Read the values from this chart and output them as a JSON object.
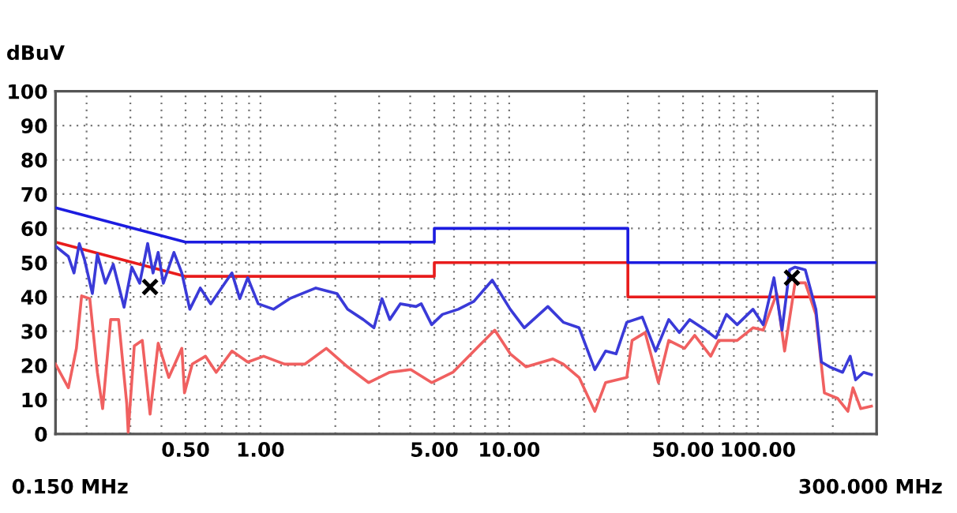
{
  "chart_data": {
    "type": "line",
    "ylabel": "dBuV",
    "log": "x",
    "grid": true,
    "legend": false,
    "line_style": "solid",
    "xlim": [
      0.15,
      300
    ],
    "ylim": [
      0,
      100
    ],
    "annotations": [
      "0.150 MHz",
      "300.000 MHz"
    ],
    "xticks": [
      {
        "value": 0.2,
        "label": null
      },
      {
        "value": 0.3,
        "label": null
      },
      {
        "value": 0.4,
        "label": null
      },
      {
        "value": 0.5,
        "label": "0.50"
      },
      {
        "value": 0.6,
        "label": null
      },
      {
        "value": 0.7,
        "label": null
      },
      {
        "value": 0.8,
        "label": null
      },
      {
        "value": 0.9,
        "label": null
      },
      {
        "value": 1,
        "label": "1.00"
      },
      {
        "value": 2,
        "label": null
      },
      {
        "value": 3,
        "label": null
      },
      {
        "value": 4,
        "label": null
      },
      {
        "value": 5,
        "label": "5.00"
      },
      {
        "value": 6,
        "label": null
      },
      {
        "value": 7,
        "label": null
      },
      {
        "value": 8,
        "label": null
      },
      {
        "value": 9,
        "label": null
      },
      {
        "value": 10,
        "label": "10.00"
      },
      {
        "value": 20,
        "label": null
      },
      {
        "value": 30,
        "label": null
      },
      {
        "value": 40,
        "label": null
      },
      {
        "value": 50,
        "label": "50.00"
      },
      {
        "value": 60,
        "label": null
      },
      {
        "value": 70,
        "label": null
      },
      {
        "value": 80,
        "label": null
      },
      {
        "value": 90,
        "label": null
      },
      {
        "value": 100,
        "label": "100.00"
      },
      {
        "value": 200,
        "label": null
      }
    ],
    "yticks": [
      0,
      10,
      20,
      30,
      40,
      50,
      60,
      70,
      80,
      90,
      100
    ],
    "series": [
      {
        "color": "#e81c1c",
        "marker": "none",
        "x": [
          0.15,
          0.5,
          5,
          5,
          30,
          30,
          300
        ],
        "values": [
          56,
          46,
          46,
          50,
          50,
          40,
          40
        ]
      },
      {
        "color": "#1c1ce0",
        "marker": "none",
        "x": [
          0.15,
          0.5,
          5,
          5,
          30,
          30,
          300
        ],
        "values": [
          66,
          56,
          56,
          60,
          60,
          50,
          50
        ]
      },
      {
        "color": "#f06060",
        "marker": "none",
        "x": [
          0.15,
          0.169,
          0.182,
          0.191,
          0.206,
          0.221,
          0.232,
          0.25,
          0.269,
          0.29,
          0.294,
          0.311,
          0.335,
          0.36,
          0.388,
          0.428,
          0.483,
          0.495,
          0.532,
          0.601,
          0.664,
          0.768,
          0.889,
          1.03,
          1.25,
          1.51,
          1.84,
          2.24,
          2.72,
          3.31,
          4.02,
          4.88,
          5.94,
          7.56,
          8.75,
          10.1,
          11.7,
          15.0,
          16.5,
          19.1,
          22.1,
          24.4,
          29.7,
          31.2,
          35.2,
          39.8,
          43.8,
          50.7,
          55.7,
          64.6,
          69.5,
          82.5,
          95.5,
          105,
          119,
          128,
          141,
          155,
          171,
          185,
          209,
          230,
          241,
          259,
          286
        ],
        "values": [
          20.4,
          13.5,
          25,
          40.3,
          39.5,
          18,
          7.4,
          33.4,
          33.4,
          8.9,
          0.5,
          25.7,
          27.3,
          5.8,
          26.5,
          16.5,
          25,
          12,
          20.4,
          22.7,
          18,
          24.2,
          21,
          22.7,
          20.4,
          20.4,
          25,
          19.6,
          15,
          18,
          18.8,
          15,
          18,
          25.7,
          30.3,
          23.4,
          19.6,
          21.9,
          20.4,
          16.5,
          6.6,
          15,
          16.5,
          27.3,
          29.6,
          15,
          27.3,
          25,
          28.8,
          22.7,
          27.3,
          27.3,
          31,
          30.3,
          41,
          24.2,
          44.1,
          44.1,
          34.9,
          12,
          10.4,
          6.6,
          13.5,
          7.4,
          8.1
        ]
      },
      {
        "color": "#3a3ad8",
        "marker": "none",
        "x": [
          0.15,
          0.169,
          0.178,
          0.187,
          0.196,
          0.211,
          0.221,
          0.238,
          0.256,
          0.283,
          0.304,
          0.327,
          0.352,
          0.37,
          0.388,
          0.407,
          0.449,
          0.483,
          0.52,
          0.573,
          0.631,
          0.697,
          0.768,
          0.826,
          0.889,
          0.979,
          1.13,
          1.31,
          1.67,
          2.03,
          2.24,
          2.59,
          2.86,
          3.08,
          3.31,
          3.65,
          4.22,
          4.43,
          4.88,
          5.39,
          6.24,
          7.21,
          8.55,
          10.1,
          11.5,
          14.3,
          16.5,
          19.1,
          22.1,
          24.4,
          26.9,
          29.7,
          34.3,
          38.8,
          43.8,
          48.3,
          53.2,
          61.6,
          67.8,
          74.7,
          82.5,
          95.5,
          105,
          116,
          125,
          134,
          141,
          155,
          171,
          180,
          194,
          219,
          235,
          247,
          266,
          286
        ],
        "values": [
          54.8,
          51.8,
          47,
          55.6,
          51,
          41,
          52.5,
          44,
          49.5,
          37,
          48.7,
          44,
          55.6,
          47,
          53,
          44,
          53,
          47,
          36.4,
          42.6,
          38,
          42.6,
          47,
          39.5,
          45.6,
          38,
          36.4,
          39.5,
          42.6,
          41,
          36.4,
          33.4,
          31,
          39.5,
          33.4,
          38,
          37.2,
          38,
          31.9,
          34.9,
          36.4,
          38.7,
          44.9,
          36.4,
          31,
          37.2,
          32.6,
          31,
          18.8,
          24.2,
          23.4,
          32.6,
          34.1,
          24.2,
          33.4,
          29.6,
          33.4,
          30.3,
          28,
          34.9,
          31.9,
          36.4,
          31.9,
          45.6,
          30.3,
          47.9,
          48.7,
          47.9,
          36.4,
          21,
          19.6,
          18,
          22.7,
          15.8,
          18,
          17.3
        ]
      },
      {
        "type": "scatter",
        "color": "#000000",
        "marker": "cross",
        "x": [
          0.36,
          137
        ],
        "values": [
          42.9,
          45.6
        ]
      }
    ]
  }
}
